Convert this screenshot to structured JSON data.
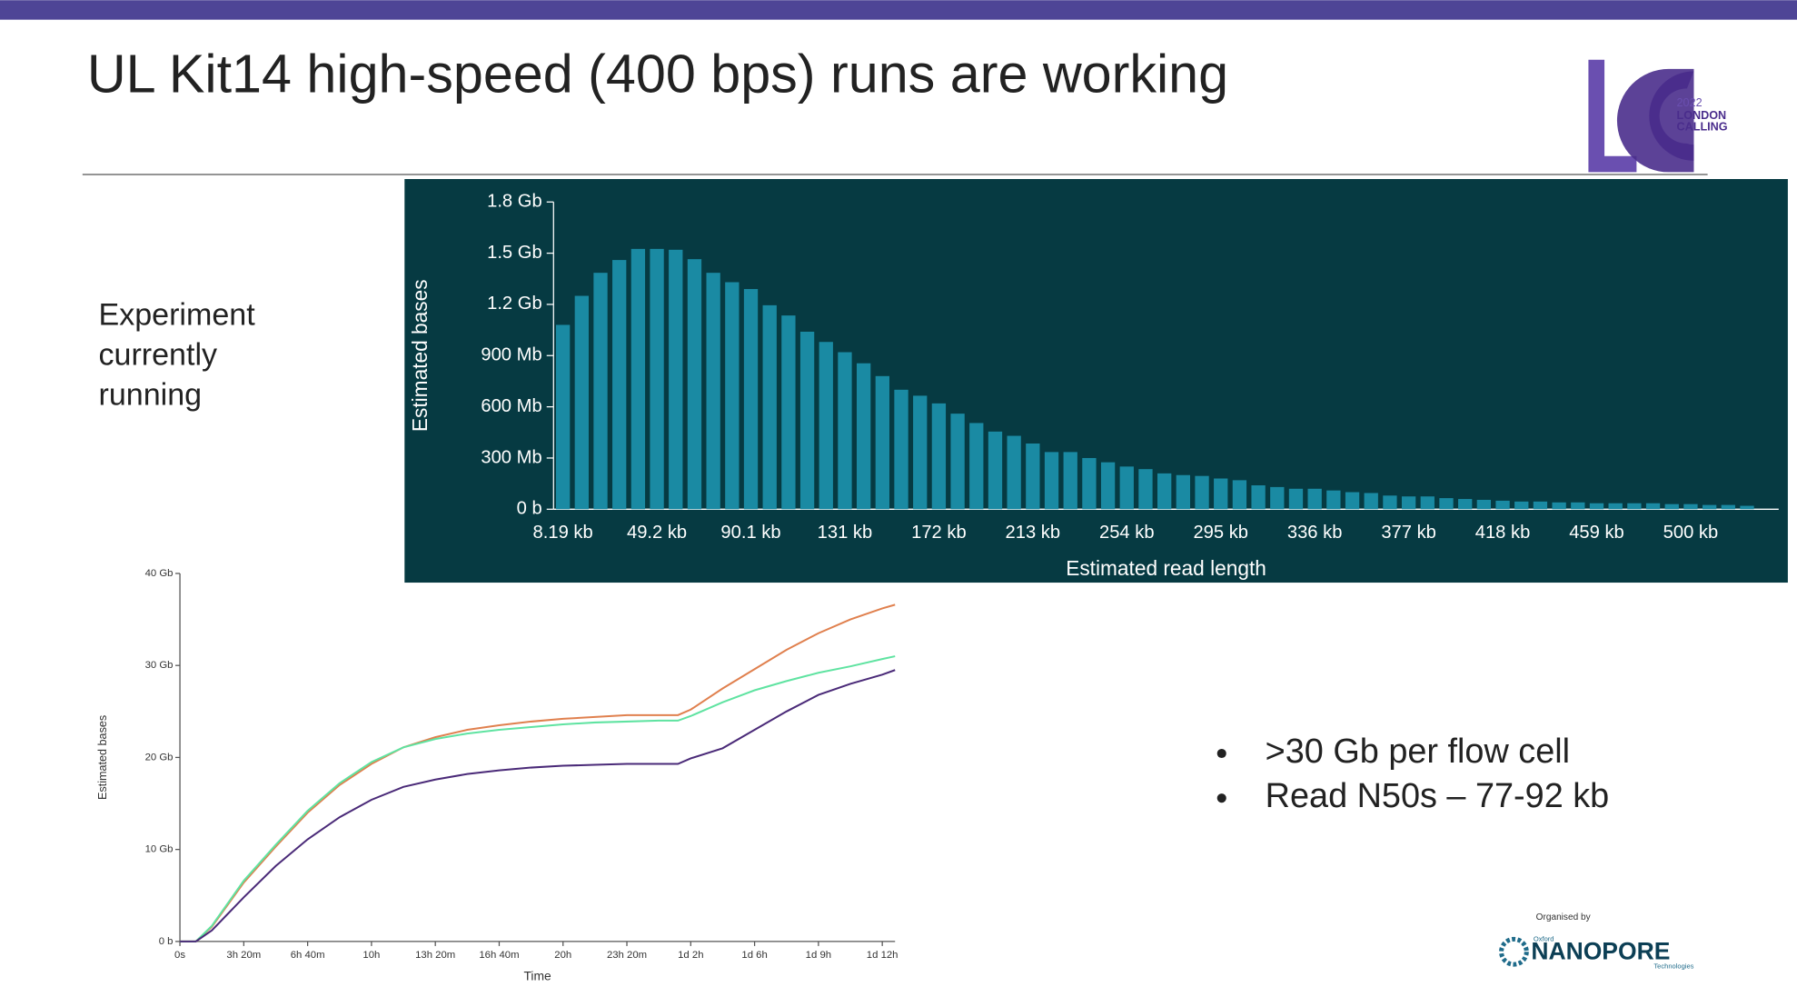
{
  "slide": {
    "title": "UL Kit14 high-speed (400 bps) runs are working",
    "side_text": [
      "Experiment",
      "currently",
      "running"
    ],
    "bullets": [
      ">30 Gb per flow cell",
      "Read N50s – 77-92 kb"
    ],
    "logo": {
      "year": "2022",
      "line1": "LONDON",
      "line2": "CALLING"
    },
    "sponsor": {
      "caption": "Organised by",
      "small": "Oxford",
      "name": "NANOPORE",
      "sub": "Technologies"
    }
  },
  "chart_data": [
    {
      "type": "bar",
      "ylabel": "Estimated bases",
      "xlabel": "Estimated read length",
      "color": "#1a8aa3",
      "categories": [
        "8.19 kb",
        null,
        null,
        null,
        null,
        "49.2 kb",
        null,
        null,
        null,
        null,
        "90.1 kb",
        null,
        null,
        null,
        null,
        "131 kb",
        null,
        null,
        null,
        null,
        "172 kb",
        null,
        null,
        null,
        null,
        "213 kb",
        null,
        null,
        null,
        null,
        "254 kb",
        null,
        null,
        null,
        null,
        "295 kb",
        null,
        null,
        null,
        null,
        "336 kb",
        null,
        null,
        null,
        null,
        "377 kb",
        null,
        null,
        null,
        null,
        "418 kb",
        null,
        null,
        null,
        null,
        "459 kb",
        null,
        null,
        null,
        null,
        "500 kb",
        null,
        null,
        null
      ],
      "values": [
        1080,
        1250,
        1385,
        1460,
        1525,
        1525,
        1520,
        1465,
        1385,
        1330,
        1290,
        1195,
        1135,
        1040,
        980,
        920,
        855,
        780,
        700,
        665,
        620,
        560,
        505,
        455,
        430,
        385,
        335,
        335,
        300,
        275,
        250,
        235,
        210,
        200,
        195,
        180,
        170,
        140,
        130,
        120,
        120,
        110,
        100,
        95,
        80,
        75,
        75,
        65,
        60,
        55,
        50,
        45,
        45,
        40,
        40,
        35,
        35,
        35,
        35,
        30,
        30,
        25,
        25,
        20
      ],
      "ylim": [
        0,
        1800
      ],
      "yticks": [
        {
          "value": 0,
          "label": "0 b"
        },
        {
          "value": 300,
          "label": "300 Mb"
        },
        {
          "value": 600,
          "label": "600 Mb"
        },
        {
          "value": 900,
          "label": "900 Mb"
        },
        {
          "value": 1200,
          "label": "1.2 Gb"
        },
        {
          "value": 1500,
          "label": "1.5 Gb"
        },
        {
          "value": 1800,
          "label": "1.8 Gb"
        }
      ]
    },
    {
      "type": "line",
      "ylabel": "Estimated bases",
      "xlabel": "Time",
      "x": [
        0,
        50,
        100,
        200,
        300,
        400,
        500,
        600,
        700,
        800,
        900,
        1000,
        1100,
        1200,
        1300,
        1400,
        1500,
        1560,
        1600,
        1700,
        1800,
        1900,
        2000,
        2100,
        2200,
        2240
      ],
      "series": [
        {
          "color": "#e0804e",
          "values": [
            0,
            0,
            1.6,
            6.4,
            10.3,
            14.0,
            17.0,
            19.3,
            21.1,
            22.2,
            23.0,
            23.5,
            23.9,
            24.2,
            24.4,
            24.6,
            24.6,
            24.6,
            25.2,
            27.5,
            29.6,
            31.7,
            33.5,
            35.0,
            36.2,
            36.6
          ]
        },
        {
          "color": "#5fe3a1",
          "values": [
            0,
            0,
            1.7,
            6.6,
            10.5,
            14.2,
            17.2,
            19.5,
            21.1,
            22.0,
            22.6,
            23.0,
            23.3,
            23.6,
            23.8,
            23.9,
            24.0,
            24.0,
            24.5,
            26.0,
            27.3,
            28.3,
            29.2,
            29.9,
            30.7,
            31.0
          ]
        },
        {
          "color": "#4a2a78",
          "values": [
            0,
            0,
            1.2,
            4.8,
            8.2,
            11.1,
            13.5,
            15.4,
            16.8,
            17.6,
            18.2,
            18.6,
            18.9,
            19.1,
            19.2,
            19.3,
            19.3,
            19.3,
            19.9,
            21.0,
            23.0,
            25.0,
            26.8,
            28.0,
            29.0,
            29.5
          ]
        }
      ],
      "xlim": [
        0,
        2240
      ],
      "ylim": [
        0,
        40
      ],
      "xticks": [
        {
          "value": 0,
          "label": "0s"
        },
        {
          "value": 200,
          "label": "3h 20m"
        },
        {
          "value": 400,
          "label": "6h 40m"
        },
        {
          "value": 600,
          "label": "10h"
        },
        {
          "value": 800,
          "label": "13h 20m"
        },
        {
          "value": 1000,
          "label": "16h 40m"
        },
        {
          "value": 1200,
          "label": "20h"
        },
        {
          "value": 1400,
          "label": "23h 20m"
        },
        {
          "value": 1600,
          "label": "1d 2h"
        },
        {
          "value": 1800,
          "label": "1d 6h"
        },
        {
          "value": 2000,
          "label": "1d 9h"
        },
        {
          "value": 2200,
          "label": "1d 12h"
        }
      ],
      "yticks": [
        {
          "value": 0,
          "label": "0 b"
        },
        {
          "value": 10,
          "label": "10 Gb"
        },
        {
          "value": 20,
          "label": "20 Gb"
        },
        {
          "value": 30,
          "label": "30 Gb"
        },
        {
          "value": 40,
          "label": "40 Gb"
        }
      ]
    }
  ]
}
